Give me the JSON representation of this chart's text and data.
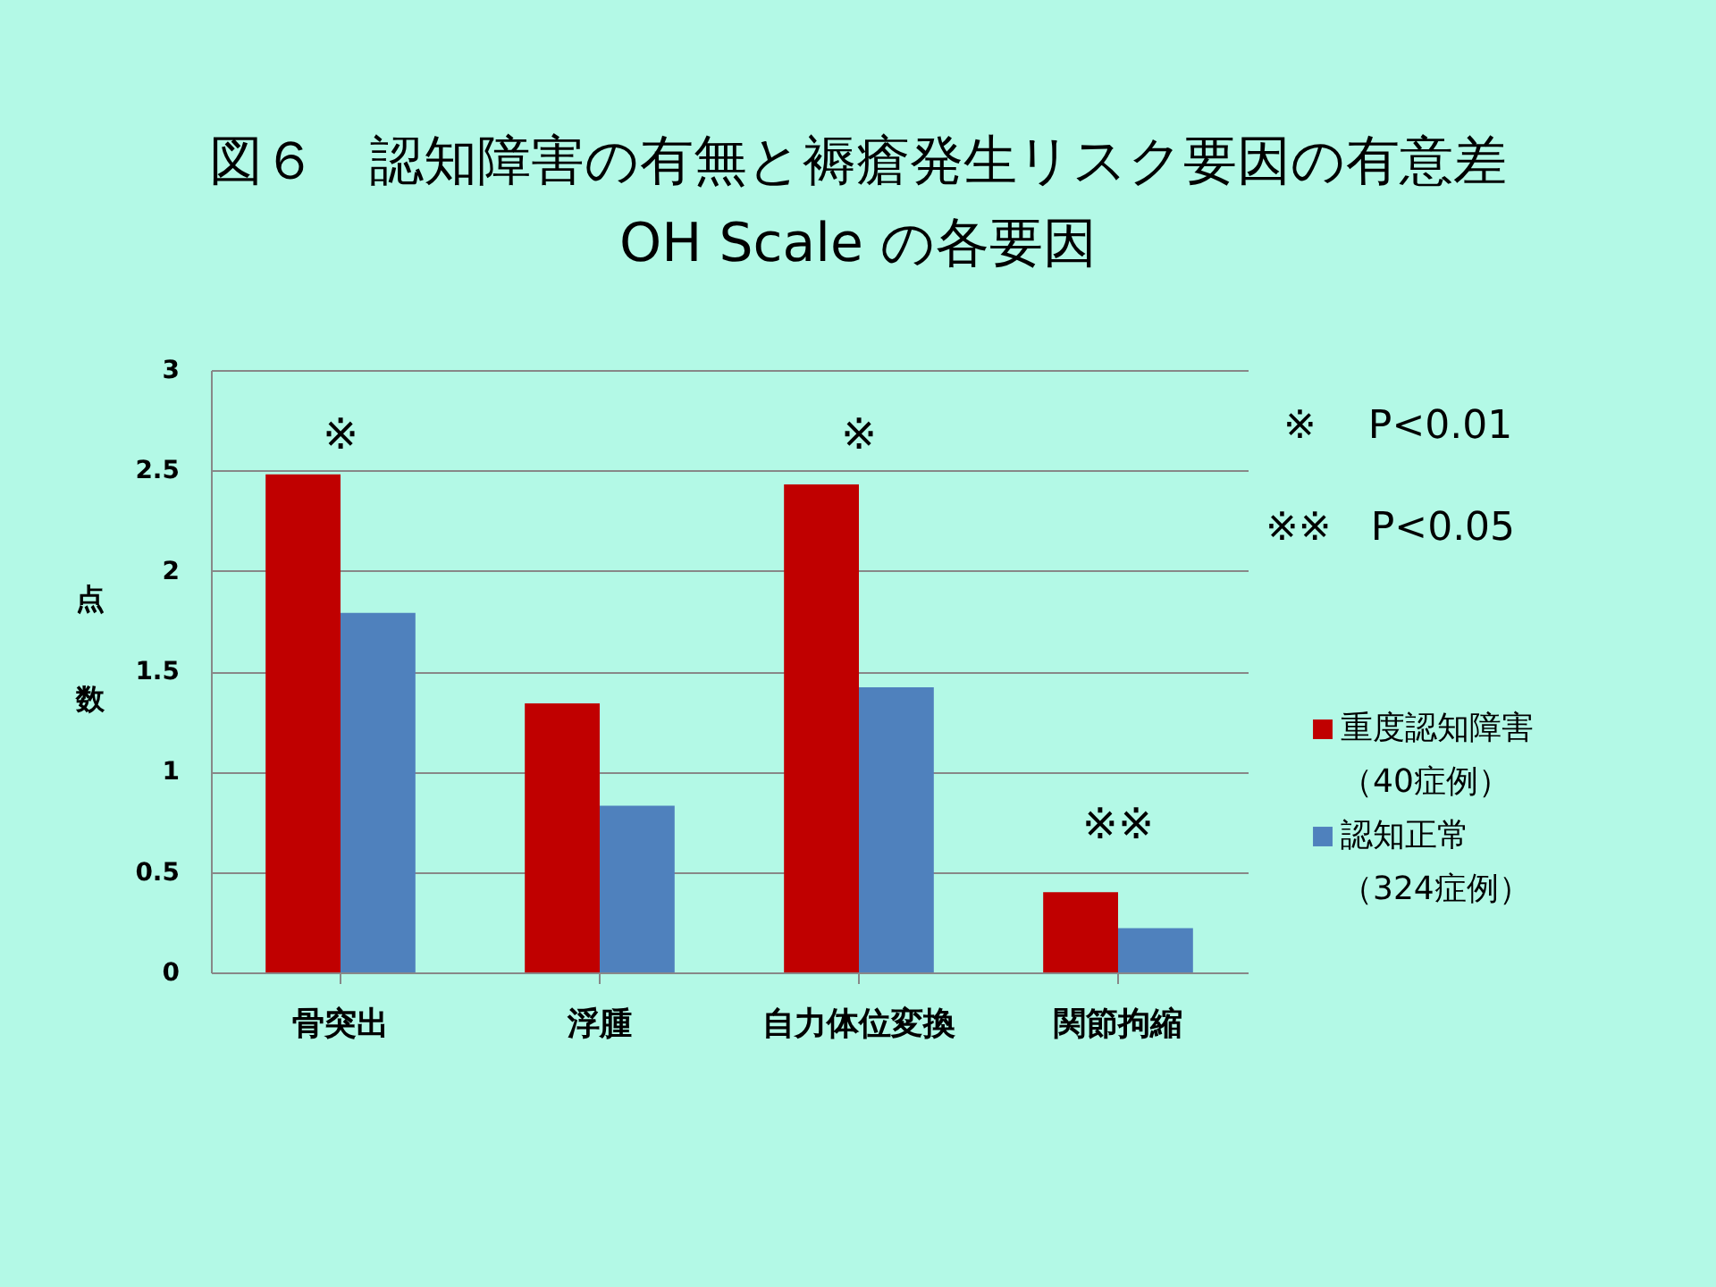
{
  "chart_data": {
    "type": "bar",
    "title": "図６　認知障害の有無と褥瘡発生リスク要因の有意差\nOH Scale の各要因",
    "ylabel": "点数",
    "categories": [
      "骨突出",
      "浮腫",
      "自力体位変換",
      "関節拘縮"
    ],
    "series": [
      {
        "name": "重度認知障害（40症例）",
        "color": "#c00000",
        "values": [
          2.48,
          1.34,
          2.43,
          0.4
        ]
      },
      {
        "name": "認知正常（324症例）",
        "color": "#4f81bd",
        "values": [
          1.79,
          0.83,
          1.42,
          0.22
        ]
      }
    ],
    "ylim": [
      0,
      3
    ],
    "yticks": [
      0,
      0.5,
      1,
      1.5,
      2,
      2.5,
      3
    ],
    "grid": "y",
    "legend": "right",
    "annotations": [
      "※",
      "※",
      "※※",
      "※　 P<0.01",
      "※※　P<0.05"
    ]
  }
}
